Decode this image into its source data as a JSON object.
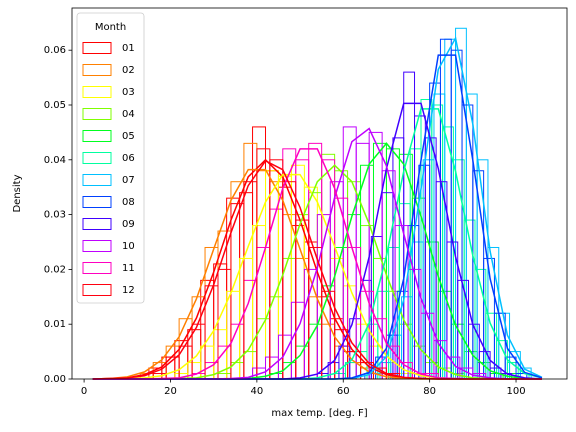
{
  "chart_data": {
    "type": "histogram-kde",
    "x_label": "max temp. [deg. F]",
    "y_label": "Density",
    "legend_title": "Month",
    "legend": "upper left",
    "xlim": [
      -2.8,
      111.8
    ],
    "ylim": [
      0,
      0.0677
    ],
    "xticks": [
      0,
      20,
      40,
      60,
      80,
      100
    ],
    "yticks": [
      {
        "value": 0,
        "label": "0.00"
      },
      {
        "value": 0.01,
        "label": "0.01"
      },
      {
        "value": 0.02,
        "label": "0.02"
      },
      {
        "value": 0.03,
        "label": "0.03"
      },
      {
        "value": 0.04,
        "label": "0.04"
      },
      {
        "value": 0.05,
        "label": "0.05"
      },
      {
        "value": 0.06,
        "label": "0.06"
      }
    ],
    "kde_x": [
      2,
      6,
      10,
      14,
      18,
      22,
      26,
      30,
      34,
      38,
      42,
      46,
      50,
      54,
      58,
      62,
      66,
      70,
      74,
      78,
      82,
      86,
      90,
      94,
      98,
      102,
      106
    ],
    "series": [
      {
        "name": "01",
        "color": "#ff0000",
        "bins": [
          15,
          18,
          21,
          24,
          27,
          30,
          33,
          36,
          39,
          42,
          45,
          48,
          51,
          54,
          57,
          60,
          63,
          66,
          69,
          72
        ],
        "values": [
          0.002,
          0.004,
          0.007,
          0.009,
          0.018,
          0.021,
          0.033,
          0.034,
          0.046,
          0.038,
          0.035,
          0.028,
          0.025,
          0.015,
          0.011,
          0.005,
          0.003,
          0.002,
          0.001
        ],
        "kde": [
          0,
          0.0001,
          0.0002,
          0.0008,
          0.0022,
          0.0054,
          0.0111,
          0.0195,
          0.029,
          0.0369,
          0.04,
          0.0369,
          0.029,
          0.0195,
          0.0111,
          0.0054,
          0.0022,
          0.0008,
          0.0002,
          0.0001,
          0,
          0,
          0,
          0,
          0,
          0,
          0
        ]
      },
      {
        "name": "02",
        "color": "#ff8000",
        "bins": [
          13,
          16,
          19,
          22,
          25,
          28,
          31,
          34,
          37,
          40,
          43,
          46,
          49,
          52,
          55,
          58,
          61,
          64,
          67,
          70
        ],
        "values": [
          0.001,
          0.003,
          0.006,
          0.011,
          0.015,
          0.024,
          0.027,
          0.036,
          0.043,
          0.038,
          0.036,
          0.03,
          0.022,
          0.015,
          0.01,
          0.006,
          0.003,
          0.002,
          0.001
        ],
        "kde": [
          0,
          0.0001,
          0.0004,
          0.0013,
          0.0035,
          0.0077,
          0.0146,
          0.0237,
          0.0326,
          0.0382,
          0.0382,
          0.0326,
          0.0237,
          0.0146,
          0.0077,
          0.0035,
          0.0013,
          0.0004,
          0.0001,
          0,
          0,
          0,
          0,
          0,
          0,
          0,
          0
        ]
      },
      {
        "name": "03",
        "color": "#ffff00",
        "bins": [
          21,
          24,
          27,
          30,
          33,
          36,
          39,
          42,
          45,
          48,
          51,
          54,
          57,
          60,
          63,
          66,
          69,
          72,
          75,
          78
        ],
        "values": [
          0.001,
          0.003,
          0.006,
          0.009,
          0.016,
          0.022,
          0.028,
          0.038,
          0.037,
          0.039,
          0.035,
          0.03,
          0.022,
          0.017,
          0.01,
          0.006,
          0.003,
          0.001,
          0.001
        ],
        "kde": [
          0,
          0,
          0.0001,
          0.0002,
          0.0006,
          0.0017,
          0.0042,
          0.0088,
          0.0157,
          0.0242,
          0.0323,
          0.0373,
          0.0373,
          0.0323,
          0.0242,
          0.0157,
          0.0088,
          0.0042,
          0.0017,
          0.0006,
          0.0002,
          0.0001,
          0,
          0,
          0,
          0,
          0
        ]
      },
      {
        "name": "04",
        "color": "#80ff00",
        "bins": [
          31,
          34,
          37,
          40,
          43,
          46,
          49,
          52,
          55,
          58,
          61,
          64,
          67,
          70,
          73,
          76,
          79,
          82,
          85,
          88
        ],
        "values": [
          0.001,
          0.003,
          0.005,
          0.011,
          0.015,
          0.022,
          0.03,
          0.034,
          0.041,
          0.038,
          0.036,
          0.028,
          0.022,
          0.016,
          0.01,
          0.006,
          0.003,
          0.002,
          0.001
        ],
        "kde": [
          0,
          0,
          0,
          0,
          0,
          0.0001,
          0.0002,
          0.0008,
          0.0022,
          0.0053,
          0.0108,
          0.019,
          0.0283,
          0.036,
          0.039,
          0.036,
          0.0283,
          0.019,
          0.0108,
          0.0053,
          0.0022,
          0.0008,
          0.0002,
          0.0001,
          0,
          0,
          0
        ]
      },
      {
        "name": "05",
        "color": "#00ff20",
        "bins": [
          43,
          46,
          49,
          52,
          55,
          58,
          61,
          64,
          67,
          70,
          73,
          76,
          79,
          82,
          85,
          88,
          91,
          94,
          97,
          100
        ],
        "values": [
          0.001,
          0.003,
          0.006,
          0.01,
          0.017,
          0.024,
          0.03,
          0.039,
          0.043,
          0.042,
          0.041,
          0.033,
          0.025,
          0.016,
          0.01,
          0.005,
          0.003,
          0.001,
          0.001
        ],
        "kde": [
          0,
          0,
          0,
          0,
          0,
          0,
          0,
          0,
          0,
          0.0001,
          0.0005,
          0.0015,
          0.0043,
          0.0098,
          0.0187,
          0.0297,
          0.0392,
          0.043,
          0.0392,
          0.0297,
          0.0187,
          0.0098,
          0.0043,
          0.0015,
          0.0005,
          0.0001,
          0
        ]
      },
      {
        "name": "06",
        "color": "#00ffa0",
        "bins": [
          58,
          60.5,
          63,
          65.5,
          68,
          70.5,
          73,
          75.5,
          78,
          80.5,
          83,
          85.5,
          88,
          90.5,
          93,
          95.5,
          98,
          100.5,
          103
        ],
        "values": [
          0.001,
          0.003,
          0.005,
          0.01,
          0.016,
          0.024,
          0.032,
          0.042,
          0.051,
          0.05,
          0.046,
          0.04,
          0.029,
          0.02,
          0.012,
          0.007,
          0.003,
          0.001
        ],
        "kde": [
          0,
          0,
          0,
          0,
          0,
          0,
          0,
          0,
          0,
          0,
          0,
          0,
          0,
          0.0002,
          0.001,
          0.0035,
          0.0102,
          0.0225,
          0.0379,
          0.0493,
          0.0493,
          0.0379,
          0.0225,
          0.0102,
          0.0035,
          0.001,
          0.0002
        ]
      },
      {
        "name": "07",
        "color": "#00c0ff",
        "bins": [
          66,
          68.5,
          71,
          73.5,
          76,
          78.5,
          81,
          83.5,
          86,
          88.5,
          91,
          93.5,
          96,
          98.5,
          101,
          103.5
        ],
        "values": [
          0.001,
          0.003,
          0.008,
          0.015,
          0.025,
          0.04,
          0.052,
          0.062,
          0.064,
          0.052,
          0.04,
          0.024,
          0.012,
          0.005,
          0.002
        ],
        "kde": [
          0,
          0,
          0,
          0,
          0,
          0,
          0,
          0,
          0,
          0,
          0,
          0,
          0,
          0,
          0,
          0.0001,
          0.0008,
          0.0041,
          0.0144,
          0.0347,
          0.0565,
          0.0622,
          0.0465,
          0.0233,
          0.008,
          0.0018,
          0.0003
        ]
      },
      {
        "name": "08",
        "color": "#0040ff",
        "bins": [
          65,
          67.5,
          70,
          72.5,
          75,
          77.5,
          80,
          82.5,
          85,
          87.5,
          90,
          92.5,
          95,
          97.5,
          100,
          102.5
        ],
        "values": [
          0.001,
          0.004,
          0.008,
          0.016,
          0.028,
          0.039,
          0.054,
          0.062,
          0.06,
          0.05,
          0.038,
          0.022,
          0.012,
          0.004,
          0.001
        ],
        "kde": [
          0,
          0,
          0,
          0,
          0,
          0,
          0,
          0,
          0,
          0,
          0,
          0,
          0,
          0,
          0,
          0.0002,
          0.0012,
          0.0056,
          0.0183,
          0.0399,
          0.0591,
          0.0591,
          0.0399,
          0.0183,
          0.0056,
          0.0012,
          0.0002
        ]
      },
      {
        "name": "09",
        "color": "#4000ff",
        "bins": [
          54,
          56.5,
          59,
          61.5,
          64,
          66.5,
          69,
          71.5,
          74,
          76.5,
          79,
          81.5,
          84,
          86.5,
          89,
          91.5,
          94,
          96.5,
          99
        ],
        "values": [
          0.001,
          0.003,
          0.006,
          0.011,
          0.018,
          0.026,
          0.034,
          0.044,
          0.056,
          0.048,
          0.044,
          0.036,
          0.025,
          0.018,
          0.01,
          0.005,
          0.002,
          0.001
        ],
        "kde": [
          0,
          0,
          0,
          0,
          0,
          0,
          0,
          0,
          0,
          0,
          0,
          0,
          0.0002,
          0.0009,
          0.0034,
          0.0099,
          0.0223,
          0.0384,
          0.0503,
          0.0503,
          0.0384,
          0.0223,
          0.0099,
          0.0034,
          0.0009,
          0.0002,
          0
        ]
      },
      {
        "name": "10",
        "color": "#c000ff",
        "bins": [
          39,
          42,
          45,
          48,
          51,
          54,
          57,
          60,
          63,
          66,
          69,
          72,
          75,
          78,
          81,
          84,
          87,
          90,
          93
        ],
        "values": [
          0.002,
          0.004,
          0.008,
          0.014,
          0.02,
          0.03,
          0.036,
          0.046,
          0.043,
          0.045,
          0.038,
          0.028,
          0.02,
          0.012,
          0.007,
          0.004,
          0.002,
          0.001
        ],
        "kde": [
          0,
          0,
          0,
          0,
          0,
          0,
          0,
          0,
          0.0001,
          0.0003,
          0.0013,
          0.004,
          0.0101,
          0.0203,
          0.0331,
          0.0433,
          0.0457,
          0.0389,
          0.0265,
          0.0147,
          0.0065,
          0.0023,
          0.0007,
          0.0002,
          0,
          0,
          0
        ]
      },
      {
        "name": "11",
        "color": "#ff00c0",
        "bins": [
          25,
          28,
          31,
          34,
          37,
          40,
          43,
          46,
          49,
          52,
          55,
          58,
          61,
          64,
          67,
          70,
          73,
          76,
          79,
          82
        ],
        "values": [
          0.001,
          0.003,
          0.006,
          0.01,
          0.018,
          0.024,
          0.031,
          0.042,
          0.04,
          0.043,
          0.04,
          0.033,
          0.024,
          0.016,
          0.011,
          0.006,
          0.003,
          0.001,
          0.001
        ],
        "kde": [
          0,
          0,
          0,
          0,
          0.0001,
          0.0002,
          0.0009,
          0.0026,
          0.0065,
          0.0138,
          0.024,
          0.0348,
          0.042,
          0.042,
          0.0348,
          0.024,
          0.0138,
          0.0065,
          0.0026,
          0.0009,
          0.0002,
          0.0001,
          0,
          0,
          0,
          0,
          0
        ]
      },
      {
        "name": "12",
        "color": "#ff0010",
        "bins": [
          16,
          19,
          22,
          25,
          28,
          31,
          34,
          37,
          40,
          43,
          46,
          49,
          52,
          55,
          58,
          61,
          64,
          67,
          70,
          73
        ],
        "values": [
          0.001,
          0.004,
          0.006,
          0.01,
          0.017,
          0.02,
          0.032,
          0.036,
          0.042,
          0.04,
          0.036,
          0.029,
          0.024,
          0.016,
          0.009,
          0.005,
          0.003,
          0.002,
          0.001
        ],
        "kde": [
          0,
          0.0001,
          0.0002,
          0.0006,
          0.0018,
          0.0044,
          0.0094,
          0.0172,
          0.0267,
          0.0353,
          0.0398,
          0.0382,
          0.0313,
          0.0218,
          0.013,
          0.0066,
          0.0028,
          0.001,
          0.0003,
          0.0001,
          0,
          0,
          0,
          0,
          0,
          0,
          0
        ]
      }
    ]
  }
}
